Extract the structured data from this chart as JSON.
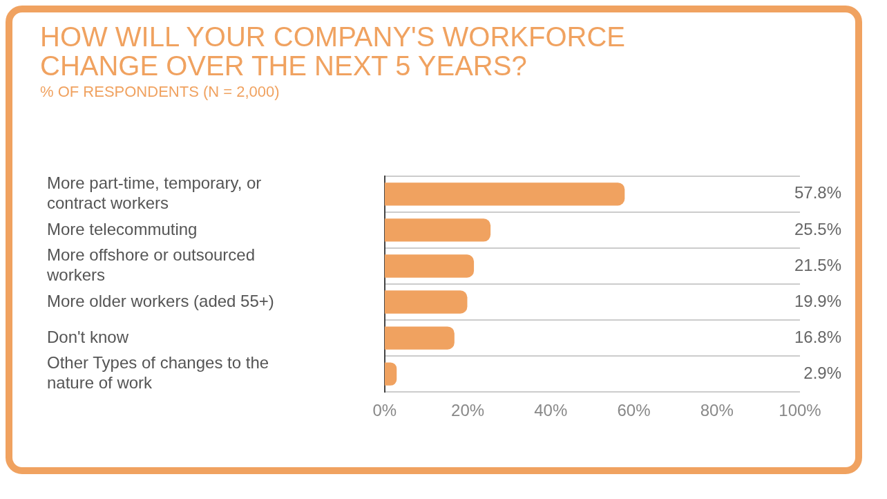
{
  "chart_data": {
    "type": "bar",
    "orientation": "horizontal",
    "title": "HOW WILL YOUR COMPANY'S WORKFORCE CHANGE OVER THE NEXT 5 YEARS?",
    "subtitle": "% OF RESPONDENTS (N = 2,000)",
    "categories": [
      "More part-time, temporary, or contract workers",
      "More telecommuting",
      "More offshore or outsourced workers",
      "More older workers (aded 55+)",
      "Don't know",
      "Other Types of changes to the nature of work"
    ],
    "values": [
      57.8,
      25.5,
      21.5,
      19.9,
      16.8,
      2.9
    ],
    "value_labels": [
      "57.8%",
      "25.5%",
      "21.5%",
      "19.9%",
      "16.8%",
      "2.9%"
    ],
    "color": "#f0a260",
    "xlim": [
      0,
      100
    ],
    "xticks": [
      {
        "value": 0,
        "label": "0%"
      },
      {
        "value": 20,
        "label": "20%"
      },
      {
        "value": 40,
        "label": "40%"
      },
      {
        "value": 60,
        "label": "60%"
      },
      {
        "value": 80,
        "label": "80%"
      },
      {
        "value": 100,
        "label": "100%"
      }
    ],
    "grid": "y"
  }
}
